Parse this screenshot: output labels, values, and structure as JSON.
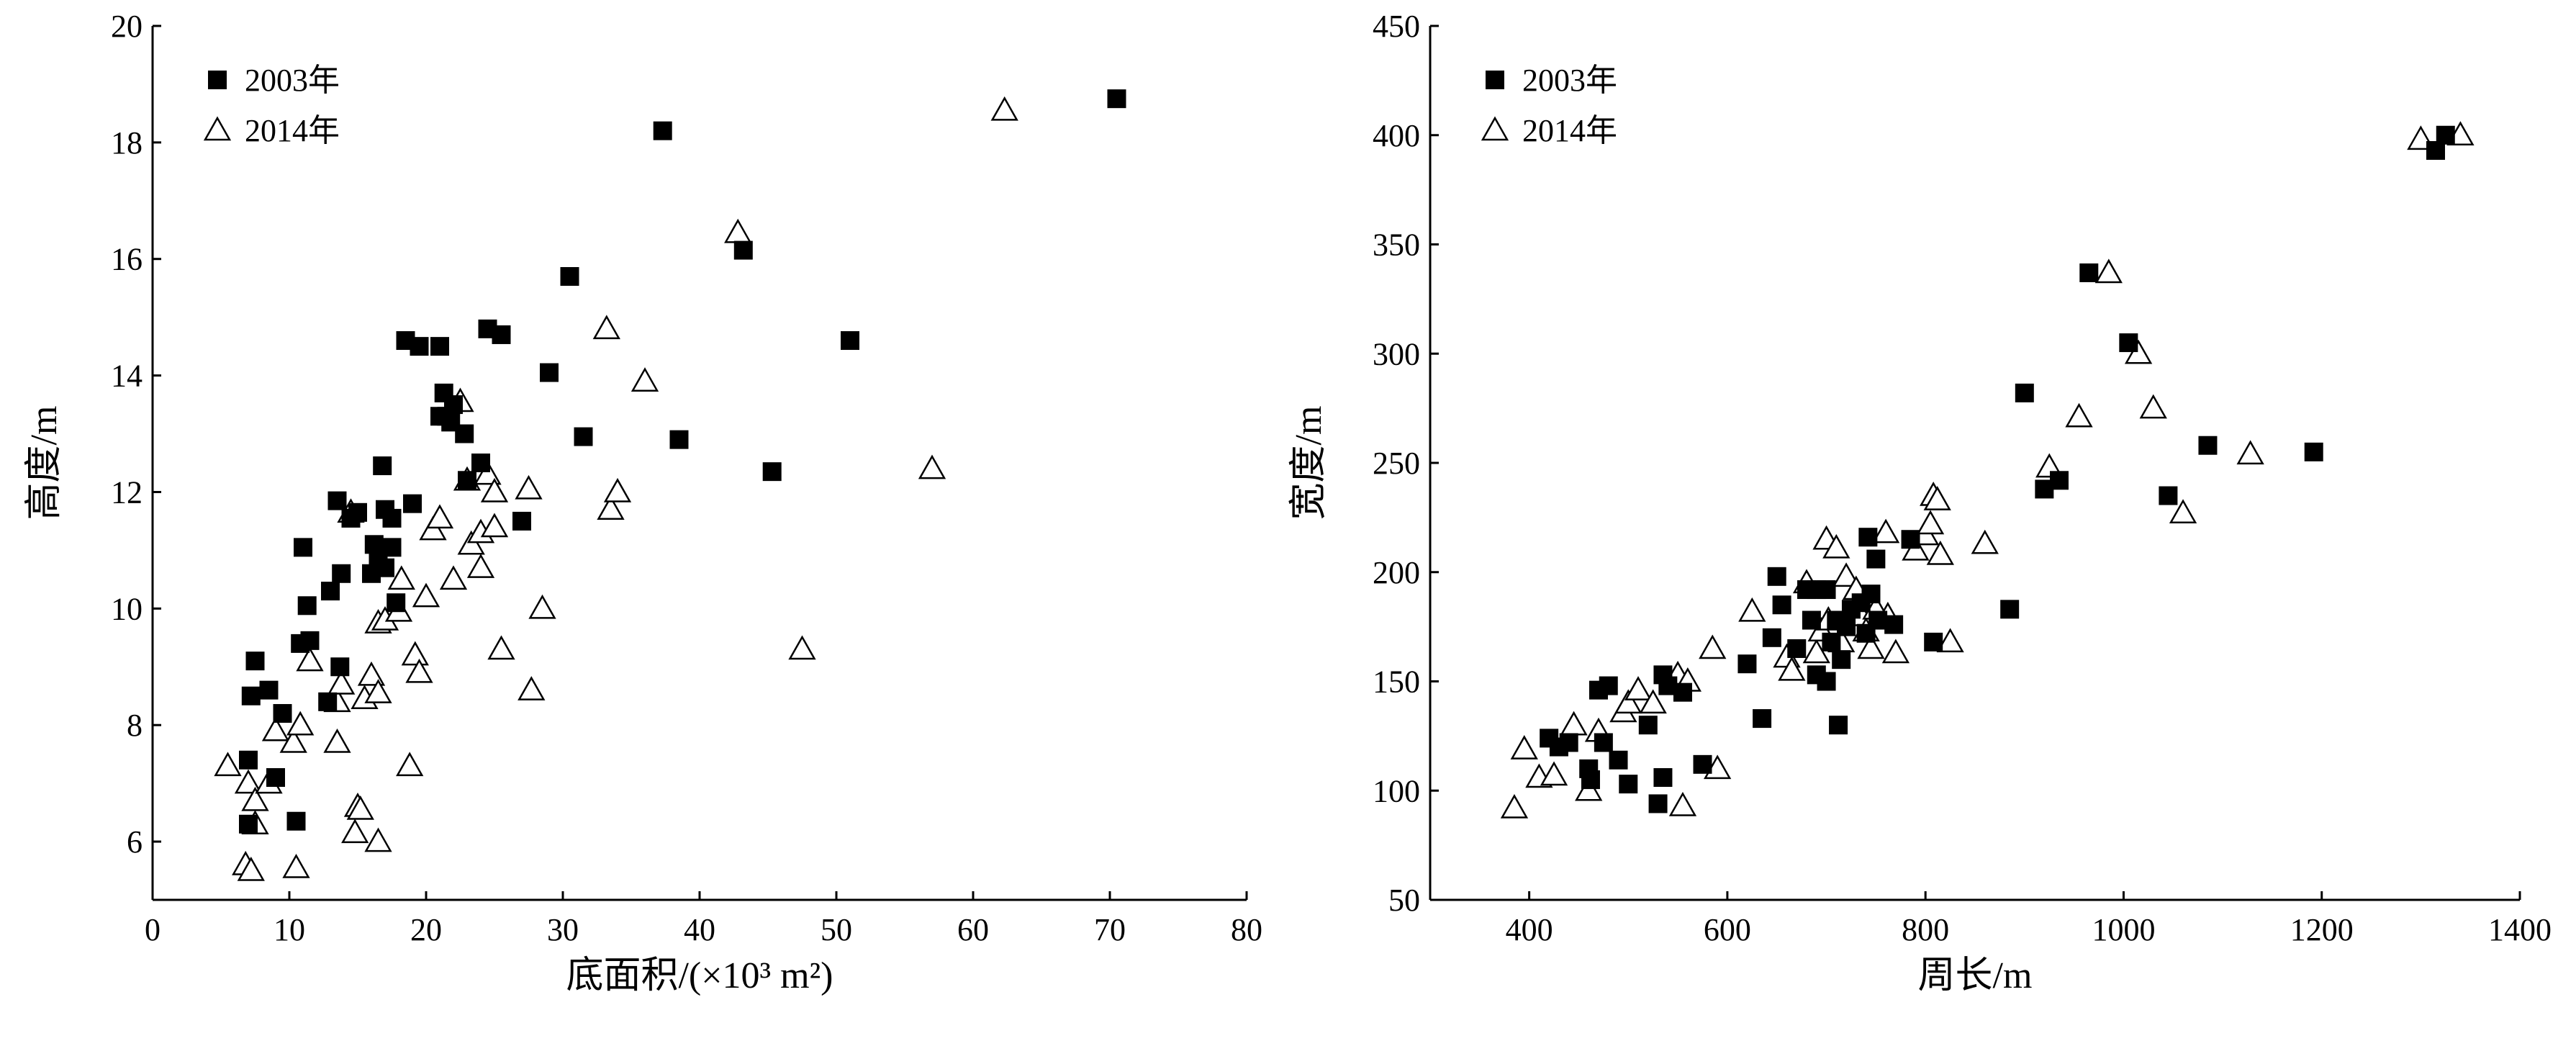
{
  "chart_data": [
    {
      "type": "scatter",
      "xlabel": "底面积/(×10³ m²)",
      "ylabel": "高度/m",
      "xlim": [
        0,
        80
      ],
      "ylim": [
        5,
        20
      ],
      "xticks": [
        "0",
        "10",
        "20",
        "30",
        "40",
        "50",
        "60",
        "70",
        "80"
      ],
      "yticks": [
        "6",
        "8",
        "10",
        "12",
        "14",
        "16",
        "18",
        "20"
      ],
      "grid": false,
      "legend_position": "top-left",
      "series": [
        {
          "name": "2003年",
          "marker": "filled-square",
          "points": [
            [
              7,
              6.3
            ],
            [
              7,
              7.4
            ],
            [
              7.2,
              8.5
            ],
            [
              7.5,
              9.1
            ],
            [
              8.5,
              8.6
            ],
            [
              9,
              7.1
            ],
            [
              9.5,
              8.2
            ],
            [
              10.5,
              6.35
            ],
            [
              10.8,
              9.4
            ],
            [
              11,
              11.05
            ],
            [
              11.3,
              10.05
            ],
            [
              11.5,
              9.45
            ],
            [
              12.8,
              8.4
            ],
            [
              13,
              10.3
            ],
            [
              13.5,
              11.85
            ],
            [
              13.7,
              9
            ],
            [
              13.8,
              10.6
            ],
            [
              14.5,
              11.55
            ],
            [
              15,
              11.65
            ],
            [
              16,
              10.6
            ],
            [
              16.2,
              11.1
            ],
            [
              16.5,
              10.9
            ],
            [
              16.8,
              12.45
            ],
            [
              17,
              11.7
            ],
            [
              17,
              10.7
            ],
            [
              17.5,
              11.05
            ],
            [
              17.5,
              11.55
            ],
            [
              17.8,
              10.1
            ],
            [
              18.5,
              14.6
            ],
            [
              19,
              11.8
            ],
            [
              19.5,
              14.5
            ],
            [
              21,
              14.5
            ],
            [
              21,
              13.3
            ],
            [
              21.3,
              13.7
            ],
            [
              21.5,
              13.3
            ],
            [
              21.8,
              13.2
            ],
            [
              22,
              13.5
            ],
            [
              22.8,
              13
            ],
            [
              23,
              12.2
            ],
            [
              24,
              12.5
            ],
            [
              24.5,
              14.8
            ],
            [
              25.5,
              14.7
            ],
            [
              27,
              11.5
            ],
            [
              29,
              14.05
            ],
            [
              30.5,
              15.7
            ],
            [
              31.5,
              12.95
            ],
            [
              37.3,
              18.2
            ],
            [
              38.5,
              12.9
            ],
            [
              43.2,
              16.15
            ],
            [
              45.3,
              12.35
            ],
            [
              51,
              14.6
            ],
            [
              70.5,
              18.75
            ]
          ]
        },
        {
          "name": "2014年",
          "marker": "open-triangle",
          "points": [
            [
              5.5,
              7.3
            ],
            [
              6.8,
              5.6
            ],
            [
              7,
              7
            ],
            [
              7.2,
              5.5
            ],
            [
              7.5,
              6.3
            ],
            [
              7.5,
              6.7
            ],
            [
              8.5,
              7
            ],
            [
              9,
              7.9
            ],
            [
              10.3,
              7.7
            ],
            [
              10.5,
              5.55
            ],
            [
              10.8,
              8
            ],
            [
              11.5,
              9.1
            ],
            [
              13.5,
              8.4
            ],
            [
              13.5,
              7.7
            ],
            [
              13.8,
              8.7
            ],
            [
              14.5,
              11.65
            ],
            [
              14.8,
              6.15
            ],
            [
              15,
              6.6
            ],
            [
              15.2,
              6.55
            ],
            [
              15.5,
              8.45
            ],
            [
              16,
              8.85
            ],
            [
              16.5,
              9.75
            ],
            [
              16.5,
              8.55
            ],
            [
              16.5,
              6
            ],
            [
              17,
              9.8
            ],
            [
              18,
              9.95
            ],
            [
              18.2,
              10.5
            ],
            [
              18.8,
              7.3
            ],
            [
              19.2,
              9.2
            ],
            [
              19.5,
              8.9
            ],
            [
              20,
              10.2
            ],
            [
              20.5,
              11.35
            ],
            [
              21,
              11.55
            ],
            [
              22,
              10.5
            ],
            [
              22.5,
              13.55
            ],
            [
              23,
              12.2
            ],
            [
              23.3,
              11.1
            ],
            [
              24,
              10.7
            ],
            [
              24,
              11.3
            ],
            [
              24.5,
              12.3
            ],
            [
              25,
              11.4
            ],
            [
              25,
              12
            ],
            [
              25.5,
              9.3
            ],
            [
              27.5,
              12.05
            ],
            [
              27.7,
              8.6
            ],
            [
              28.5,
              10
            ],
            [
              33.2,
              14.8
            ],
            [
              33.5,
              11.7
            ],
            [
              34,
              12
            ],
            [
              36,
              13.9
            ],
            [
              42.8,
              16.45
            ],
            [
              47.5,
              9.3
            ],
            [
              57,
              12.4
            ],
            [
              62.3,
              18.55
            ]
          ]
        }
      ]
    },
    {
      "type": "scatter",
      "xlabel": "周长/m",
      "ylabel": "宽度/m",
      "xlim": [
        300,
        1400
      ],
      "ylim": [
        50,
        450
      ],
      "xticks": [
        "400",
        "600",
        "800",
        "1000",
        "1200",
        "1400"
      ],
      "yticks": [
        "50",
        "100",
        "150",
        "200",
        "250",
        "300",
        "350",
        "400",
        "450"
      ],
      "grid": false,
      "legend_position": "top-left",
      "series": [
        {
          "name": "2003年",
          "marker": "filled-square",
          "points": [
            [
              420,
              124
            ],
            [
              430,
              120
            ],
            [
              440,
              122
            ],
            [
              460,
              110
            ],
            [
              462,
              105
            ],
            [
              470,
              146
            ],
            [
              475,
              122
            ],
            [
              480,
              148
            ],
            [
              490,
              114
            ],
            [
              500,
              103
            ],
            [
              520,
              130
            ],
            [
              530,
              94
            ],
            [
              535,
              106
            ],
            [
              535,
              153
            ],
            [
              540,
              148
            ],
            [
              555,
              145
            ],
            [
              575,
              112
            ],
            [
              620,
              158
            ],
            [
              635,
              133
            ],
            [
              645,
              170
            ],
            [
              650,
              198
            ],
            [
              655,
              185
            ],
            [
              670,
              165
            ],
            [
              680,
              192
            ],
            [
              685,
              178
            ],
            [
              690,
              153
            ],
            [
              690,
              192
            ],
            [
              700,
              150
            ],
            [
              700,
              192
            ],
            [
              705,
              168
            ],
            [
              710,
              178
            ],
            [
              712,
              130
            ],
            [
              715,
              160
            ],
            [
              720,
              175
            ],
            [
              725,
              183
            ],
            [
              735,
              186
            ],
            [
              740,
              172
            ],
            [
              742,
              216
            ],
            [
              745,
              190
            ],
            [
              750,
              206
            ],
            [
              752,
              178
            ],
            [
              768,
              176
            ],
            [
              785,
              215
            ],
            [
              808,
              168
            ],
            [
              885,
              183
            ],
            [
              900,
              282
            ],
            [
              920,
              238
            ],
            [
              935,
              242
            ],
            [
              965,
              337
            ],
            [
              1005,
              305
            ],
            [
              1045,
              235
            ],
            [
              1085,
              258
            ],
            [
              1192,
              255
            ],
            [
              1315,
              393
            ],
            [
              1325,
              400
            ]
          ]
        },
        {
          "name": "2014年",
          "marker": "open-triangle",
          "points": [
            [
              385,
              92
            ],
            [
              395,
              119
            ],
            [
              410,
              106
            ],
            [
              425,
              107
            ],
            [
              445,
              130
            ],
            [
              460,
              100
            ],
            [
              470,
              127
            ],
            [
              495,
              136
            ],
            [
              500,
              140
            ],
            [
              510,
              146
            ],
            [
              525,
              140
            ],
            [
              550,
              153
            ],
            [
              555,
              93
            ],
            [
              560,
              150
            ],
            [
              585,
              165
            ],
            [
              590,
              110
            ],
            [
              625,
              182
            ],
            [
              660,
              161
            ],
            [
              665,
              155
            ],
            [
              680,
              195
            ],
            [
              690,
              163
            ],
            [
              695,
              173
            ],
            [
              700,
              215
            ],
            [
              702,
              178
            ],
            [
              710,
              211
            ],
            [
              715,
              168
            ],
            [
              720,
              198
            ],
            [
              730,
              192
            ],
            [
              735,
              180
            ],
            [
              740,
              173
            ],
            [
              745,
              165
            ],
            [
              750,
              183
            ],
            [
              760,
              218
            ],
            [
              762,
              180
            ],
            [
              770,
              163
            ],
            [
              790,
              210
            ],
            [
              800,
              217
            ],
            [
              805,
              222
            ],
            [
              808,
              235
            ],
            [
              812,
              233
            ],
            [
              815,
              208
            ],
            [
              825,
              168
            ],
            [
              860,
              213
            ],
            [
              925,
              248
            ],
            [
              955,
              271
            ],
            [
              985,
              337
            ],
            [
              1015,
              300
            ],
            [
              1030,
              275
            ],
            [
              1060,
              227
            ],
            [
              1128,
              254
            ],
            [
              1300,
              398
            ],
            [
              1340,
              400
            ]
          ]
        }
      ]
    }
  ]
}
